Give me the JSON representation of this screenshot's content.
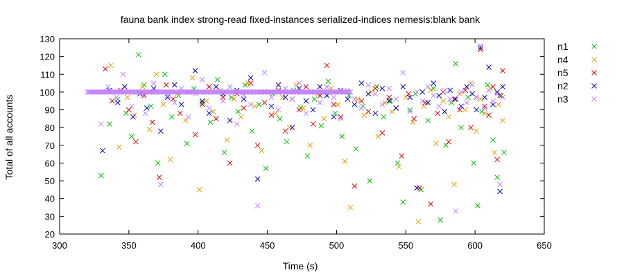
{
  "chart_data": {
    "type": "scatter",
    "title": "fauna bank index strong-read fixed-instances serialized-indices nemesis:blank bank",
    "xlabel": "Time (s)",
    "ylabel": "Total of all accounts",
    "xlim": [
      300,
      650
    ],
    "ylim": [
      20,
      130
    ],
    "xticks": [
      300,
      350,
      400,
      450,
      500,
      550,
      600,
      650
    ],
    "yticks": [
      20,
      30,
      40,
      50,
      60,
      70,
      80,
      90,
      100,
      110,
      120,
      130
    ],
    "marker": "x",
    "grid": false,
    "legend_position": "right",
    "series": [
      {
        "name": "n1",
        "color": "#00c000",
        "points": [
          [
            330,
            53
          ],
          [
            336,
            82
          ],
          [
            342,
            96
          ],
          [
            348,
            88
          ],
          [
            352,
            75
          ],
          [
            357,
            121
          ],
          [
            361,
            104
          ],
          [
            366,
            92
          ],
          [
            371,
            60
          ],
          [
            376,
            110
          ],
          [
            381,
            86
          ],
          [
            386,
            98
          ],
          [
            392,
            71
          ],
          [
            397,
            102
          ],
          [
            403,
            94
          ],
          [
            409,
            83
          ],
          [
            414,
            107
          ],
          [
            419,
            66
          ],
          [
            424,
            97
          ],
          [
            429,
            89
          ],
          [
            434,
            104
          ],
          [
            439,
            78
          ],
          [
            444,
            93
          ],
          [
            449,
            57
          ],
          [
            454,
            99
          ],
          [
            459,
            85
          ],
          [
            464,
            72
          ],
          [
            469,
            101
          ],
          [
            474,
            91
          ],
          [
            479,
            64
          ],
          [
            484,
            96
          ],
          [
            489,
            81
          ],
          [
            494,
            106
          ],
          [
            499,
            88
          ],
          [
            504,
            75
          ],
          [
            509,
            98
          ],
          [
            514,
            68
          ],
          [
            519,
            92
          ],
          [
            524,
            50
          ],
          [
            529,
            103
          ],
          [
            534,
            86
          ],
          [
            539,
            95
          ],
          [
            544,
            60
          ],
          [
            548,
            38
          ],
          [
            553,
            90
          ],
          [
            557,
            99
          ],
          [
            561,
            45
          ],
          [
            566,
            84
          ],
          [
            570,
            102
          ],
          [
            575,
            28
          ],
          [
            579,
            70
          ],
          [
            583,
            94
          ],
          [
            586,
            116
          ],
          [
            590,
            80
          ],
          [
            595,
            97
          ],
          [
            599,
            60
          ],
          [
            602,
            36
          ],
          [
            605,
            89
          ],
          [
            609,
            104
          ],
          [
            613,
            73
          ],
          [
            616,
            52
          ],
          [
            619,
            98
          ],
          [
            621,
            66
          ]
        ]
      },
      {
        "name": "n4",
        "color": "#e6a000",
        "points": [
          [
            332,
            100
          ],
          [
            337,
            115
          ],
          [
            343,
            69
          ],
          [
            349,
            97
          ],
          [
            354,
            87
          ],
          [
            360,
            103
          ],
          [
            365,
            79
          ],
          [
            370,
            110
          ],
          [
            375,
            93
          ],
          [
            380,
            62
          ],
          [
            385,
            99
          ],
          [
            391,
            84
          ],
          [
            396,
            108
          ],
          [
            401,
            45
          ],
          [
            406,
            95
          ],
          [
            411,
            89
          ],
          [
            416,
            101
          ],
          [
            421,
            73
          ],
          [
            426,
            96
          ],
          [
            431,
            86
          ],
          [
            436,
            105
          ],
          [
            441,
            92
          ],
          [
            446,
            67
          ],
          [
            451,
            100
          ],
          [
            456,
            88
          ],
          [
            461,
            97
          ],
          [
            466,
            80
          ],
          [
            471,
            104
          ],
          [
            476,
            91
          ],
          [
            481,
            70
          ],
          [
            486,
            99
          ],
          [
            491,
            85
          ],
          [
            496,
            102
          ],
          [
            501,
            93
          ],
          [
            506,
            61
          ],
          [
            510,
            35
          ],
          [
            515,
            96
          ],
          [
            520,
            87
          ],
          [
            525,
            100
          ],
          [
            530,
            75
          ],
          [
            535,
            94
          ],
          [
            540,
            89
          ],
          [
            545,
            58
          ],
          [
            550,
            97
          ],
          [
            555,
            83
          ],
          [
            559,
            27
          ],
          [
            563,
            92
          ],
          [
            568,
            101
          ],
          [
            572,
            71
          ],
          [
            577,
            95
          ],
          [
            581,
            86
          ],
          [
            585,
            48
          ],
          [
            589,
            99
          ],
          [
            593,
            90
          ],
          [
            597,
            105
          ],
          [
            601,
            78
          ],
          [
            604,
            96
          ],
          [
            607,
            88
          ],
          [
            611,
            102
          ],
          [
            614,
            66
          ],
          [
            617,
            93
          ],
          [
            620,
            84
          ]
        ]
      },
      {
        "name": "n5",
        "color": "#e00000",
        "points": [
          [
            333,
            113
          ],
          [
            338,
            95
          ],
          [
            344,
            101
          ],
          [
            350,
            90
          ],
          [
            355,
            72
          ],
          [
            361,
            98
          ],
          [
            367,
            83
          ],
          [
            372,
            52
          ],
          [
            377,
            104
          ],
          [
            382,
            96
          ],
          [
            387,
            88
          ],
          [
            393,
            100
          ],
          [
            398,
            76
          ],
          [
            403,
            93
          ],
          [
            408,
            103
          ],
          [
            413,
            85
          ],
          [
            418,
            97
          ],
          [
            423,
            60
          ],
          [
            428,
            99
          ],
          [
            433,
            91
          ],
          [
            438,
            105
          ],
          [
            443,
            70
          ],
          [
            448,
            94
          ],
          [
            453,
            87
          ],
          [
            458,
            101
          ],
          [
            463,
            78
          ],
          [
            468,
            96
          ],
          [
            473,
            90
          ],
          [
            478,
            103
          ],
          [
            483,
            82
          ],
          [
            488,
            98
          ],
          [
            493,
            115
          ],
          [
            498,
            93
          ],
          [
            503,
            86
          ],
          [
            508,
            100
          ],
          [
            513,
            47
          ],
          [
            518,
            95
          ],
          [
            523,
            89
          ],
          [
            528,
            102
          ],
          [
            533,
            77
          ],
          [
            538,
            97
          ],
          [
            543,
            91
          ],
          [
            547,
            64
          ],
          [
            552,
            99
          ],
          [
            556,
            85
          ],
          [
            560,
            46
          ],
          [
            564,
            94
          ],
          [
            568,
            37
          ],
          [
            573,
            88
          ],
          [
            577,
            100
          ],
          [
            581,
            72
          ],
          [
            585,
            96
          ],
          [
            589,
            90
          ],
          [
            593,
            101
          ],
          [
            597,
            80
          ],
          [
            601,
            97
          ],
          [
            604,
            124
          ],
          [
            607,
            92
          ],
          [
            610,
            87
          ],
          [
            613,
            103
          ],
          [
            616,
            62
          ],
          [
            618,
            98
          ],
          [
            620,
            112
          ]
        ]
      },
      {
        "name": "n2",
        "color": "#0000c0",
        "points": [
          [
            331,
            67
          ],
          [
            336,
            101
          ],
          [
            342,
            94
          ],
          [
            347,
            103
          ],
          [
            353,
            86
          ],
          [
            358,
            99
          ],
          [
            363,
            91
          ],
          [
            368,
            102
          ],
          [
            373,
            78
          ],
          [
            378,
            97
          ],
          [
            383,
            104
          ],
          [
            388,
            93
          ],
          [
            393,
            100
          ],
          [
            398,
            112
          ],
          [
            403,
            95
          ],
          [
            408,
            88
          ],
          [
            413,
            103
          ],
          [
            418,
            99
          ],
          [
            423,
            84
          ],
          [
            428,
            101
          ],
          [
            433,
            96
          ],
          [
            438,
            108
          ],
          [
            443,
            51
          ],
          [
            448,
            100
          ],
          [
            453,
            92
          ],
          [
            458,
            104
          ],
          [
            463,
            97
          ],
          [
            468,
            80
          ],
          [
            473,
            102
          ],
          [
            478,
            95
          ],
          [
            483,
            90
          ],
          [
            488,
            103
          ],
          [
            493,
            98
          ],
          [
            498,
            86
          ],
          [
            503,
            101
          ],
          [
            508,
            96
          ],
          [
            513,
            93
          ],
          [
            518,
            105
          ],
          [
            523,
            99
          ],
          [
            528,
            88
          ],
          [
            533,
            102
          ],
          [
            538,
            95
          ],
          [
            543,
            91
          ],
          [
            548,
            103
          ],
          [
            553,
            97
          ],
          [
            558,
            46
          ],
          [
            562,
            100
          ],
          [
            566,
            94
          ],
          [
            570,
            105
          ],
          [
            574,
            98
          ],
          [
            578,
            89
          ],
          [
            582,
            101
          ],
          [
            586,
            96
          ],
          [
            590,
            92
          ],
          [
            594,
            103
          ],
          [
            598,
            99
          ],
          [
            601,
            90
          ],
          [
            604,
            125
          ],
          [
            607,
            97
          ],
          [
            610,
            114
          ],
          [
            613,
            93
          ],
          [
            616,
            100
          ],
          [
            618,
            44
          ],
          [
            620,
            103
          ]
        ]
      },
      {
        "name": "n3",
        "color": "#c080ff",
        "points": [
          [
            330,
            82
          ],
          [
            335,
            103
          ],
          [
            341,
            97
          ],
          [
            346,
            110
          ],
          [
            352,
            92
          ],
          [
            357,
            100
          ],
          [
            362,
            88
          ],
          [
            368,
            105
          ],
          [
            373,
            48
          ],
          [
            378,
            98
          ],
          [
            383,
            94
          ],
          [
            388,
            102
          ],
          [
            393,
            86
          ],
          [
            398,
            99
          ],
          [
            403,
            107
          ],
          [
            408,
            91
          ],
          [
            413,
            100
          ],
          [
            418,
            95
          ],
          [
            423,
            103
          ],
          [
            428,
            82
          ],
          [
            433,
            98
          ],
          [
            438,
            93
          ],
          [
            443,
            36
          ],
          [
            448,
            111
          ],
          [
            453,
            97
          ],
          [
            458,
            90
          ],
          [
            463,
            102
          ],
          [
            468,
            96
          ],
          [
            473,
            105
          ],
          [
            478,
            88
          ],
          [
            483,
            100
          ],
          [
            488,
            94
          ],
          [
            493,
            103
          ],
          [
            498,
            97
          ],
          [
            503,
            85
          ],
          [
            508,
            101
          ],
          [
            513,
            96
          ],
          [
            518,
            91
          ],
          [
            523,
            104
          ],
          [
            528,
            99
          ],
          [
            533,
            93
          ],
          [
            538,
            102
          ],
          [
            543,
            96
          ],
          [
            548,
            111
          ],
          [
            553,
            89
          ],
          [
            558,
            100
          ],
          [
            562,
            95
          ],
          [
            566,
            103
          ],
          [
            570,
            98
          ],
          [
            574,
            92
          ],
          [
            578,
            101
          ],
          [
            582,
            96
          ],
          [
            586,
            33
          ],
          [
            590,
            100
          ],
          [
            594,
            94
          ],
          [
            598,
            104
          ],
          [
            601,
            97
          ],
          [
            604,
            126
          ],
          [
            607,
            91
          ],
          [
            610,
            101
          ],
          [
            613,
            95
          ],
          [
            616,
            99
          ],
          [
            618,
            48
          ],
          [
            620,
            97
          ]
        ]
      }
    ],
    "band": {
      "series": "n3",
      "x_start": 320,
      "x_end": 510,
      "y": 100
    }
  }
}
